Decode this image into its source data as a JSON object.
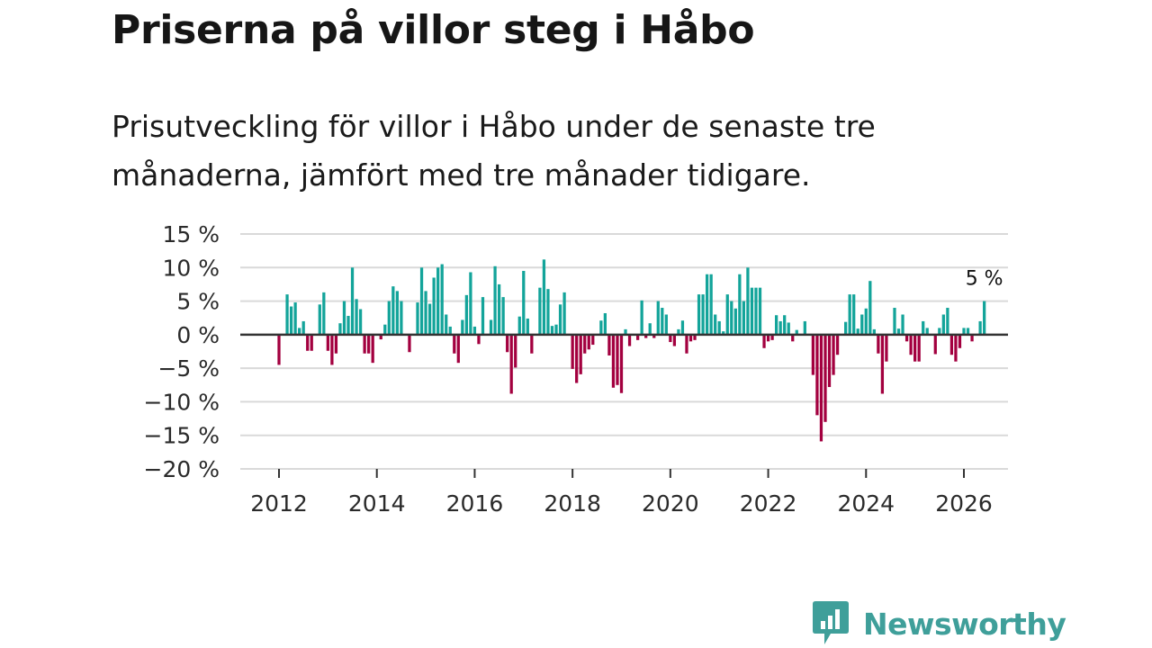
{
  "header": {
    "title": "Priserna på villor steg i Håbo",
    "subtitle": "Prisutveckling för villor i Håbo under de senaste tre månaderna, jämfört med tre månader tidigare."
  },
  "brand": {
    "name": "Newsworthy",
    "color": "#3f9f9a"
  },
  "colors": {
    "positive": "#13a49a",
    "negative": "#a3003f",
    "zero_line": "#333333",
    "grid": "#d9d9d9"
  },
  "chart_data": {
    "type": "bar",
    "title": "Priserna på villor steg i Håbo",
    "xlabel": "",
    "ylabel": "",
    "ylim": [
      -20,
      15
    ],
    "y_ticks": [
      15,
      10,
      5,
      0,
      -5,
      -10,
      -15,
      -20
    ],
    "y_tick_labels": [
      "15 %",
      "10 %",
      "5 %",
      "0 %",
      "−5 %",
      "−10 %",
      "−15 %",
      "−20 %"
    ],
    "x_ticks": [
      2012,
      2014,
      2016,
      2018,
      2020,
      2022,
      2024,
      2026
    ],
    "x_tick_labels": [
      "2012",
      "2014",
      "2016",
      "2018",
      "2020",
      "2022",
      "2024",
      "2026"
    ],
    "start": {
      "year": 2012,
      "month": 1
    },
    "grid": true,
    "last_value_label": "5 %",
    "series": [
      {
        "name": "Prisutveckling",
        "values": [
          -4.5,
          0,
          6,
          4.2,
          4.8,
          1,
          2,
          -2.4,
          -2.4,
          0,
          4.5,
          6.3,
          -2.4,
          -4.5,
          -2.8,
          1.7,
          5,
          2.8,
          10,
          5.3,
          3.8,
          -2.8,
          -2.8,
          -4.2,
          0,
          -0.7,
          1.5,
          5,
          7.2,
          6.5,
          5,
          0,
          -2.6,
          0,
          4.8,
          10,
          6.5,
          4.6,
          8.5,
          10,
          10.5,
          3,
          1.2,
          -2.8,
          -4.2,
          2.2,
          5.9,
          9.3,
          1.2,
          -1.4,
          5.6,
          0,
          2.2,
          10.2,
          7.5,
          5.6,
          -2.6,
          -8.8,
          -4.9,
          2.7,
          9.5,
          2.4,
          -2.8,
          0,
          7,
          11.2,
          6.8,
          1.3,
          1.5,
          4.5,
          6.3,
          0,
          -5.1,
          -7.2,
          -5.9,
          -2.8,
          -2.2,
          -1.5,
          0,
          2.1,
          3.2,
          -3.1,
          -7.9,
          -7.5,
          -8.7,
          0.8,
          -1.7,
          0,
          -0.8,
          5.1,
          -0.5,
          1.7,
          -0.5,
          5,
          4,
          3,
          -1.1,
          -1.7,
          0.8,
          2.1,
          -2.8,
          -1,
          -0.8,
          6,
          6,
          9,
          9,
          3,
          2,
          0.5,
          6,
          5,
          3.9,
          9,
          5,
          10,
          7,
          7,
          7,
          -2,
          -1,
          -0.8,
          2.9,
          2,
          2.9,
          1.8,
          -1,
          0.7,
          0,
          2,
          0,
          -6,
          -12,
          -15.9,
          -13,
          -7.8,
          -6,
          -3,
          0,
          1.9,
          6,
          6,
          0.9,
          3,
          3.9,
          8,
          0.8,
          -2.8,
          -8.8,
          -4,
          0,
          4,
          0.9,
          3,
          -1,
          -3,
          -4,
          -4,
          2,
          1,
          0,
          -2.9,
          1,
          3,
          4,
          -3,
          -4,
          -2,
          1,
          1,
          -1,
          0,
          2,
          5
        ]
      }
    ]
  }
}
